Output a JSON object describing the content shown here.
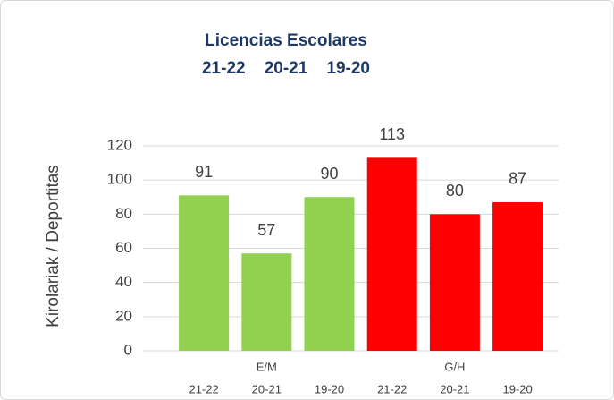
{
  "chart_data": {
    "type": "bar",
    "title": "Licencias Escolares",
    "subtitle": "21-22    20-21    19-20",
    "ylabel": "Kirolariak / Deportitas",
    "categories": [
      "21-22",
      "20-21",
      "19-20"
    ],
    "series": [
      {
        "name": "E/M",
        "color": "#92d050",
        "values": [
          91,
          57,
          90
        ]
      },
      {
        "name": "G/H",
        "color": "#ff0000",
        "values": [
          113,
          80,
          87
        ]
      }
    ],
    "ylim": [
      0,
      120
    ],
    "yticks": [
      0,
      20,
      40,
      60,
      80,
      100,
      120
    ],
    "grid": true
  }
}
